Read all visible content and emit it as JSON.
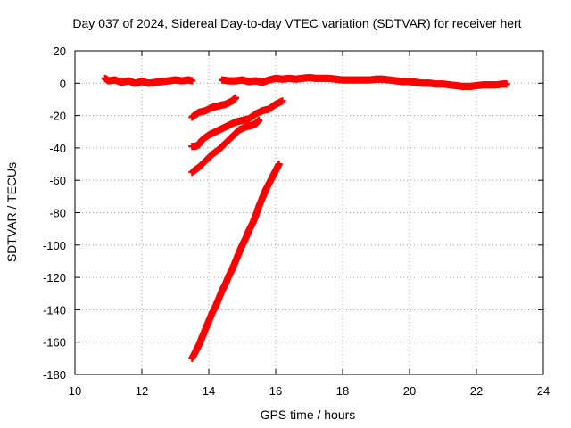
{
  "chart_data": {
    "type": "scatter",
    "title": "Day 037 of 2024, Sidereal Day-to-day VTEC variation (SDTVAR) for receiver hert",
    "xlabel": "GPS time / hours",
    "ylabel": "SDTVAR / TECUs",
    "xlim": [
      10,
      24
    ],
    "ylim": [
      -180,
      20
    ],
    "xticks": [
      10,
      12,
      14,
      16,
      18,
      20,
      22,
      24
    ],
    "yticks": [
      20,
      0,
      -20,
      -40,
      -60,
      -80,
      -100,
      -120,
      -140,
      -160,
      -180
    ],
    "grid": true,
    "marker": "plus",
    "color": "#ff0000",
    "series": [
      {
        "x": [
          10.9,
          11.0,
          11.2,
          11.4,
          11.6,
          11.8,
          12.0,
          12.2,
          12.4,
          12.6,
          12.8,
          13.0,
          13.2,
          13.4,
          13.5
        ],
        "y": [
          3,
          1.5,
          2,
          0.5,
          1.5,
          0,
          1,
          0,
          0.5,
          1,
          1.5,
          2,
          1.5,
          2,
          1.5
        ]
      },
      {
        "x": [
          14.4,
          14.6,
          14.8,
          15.0,
          15.2,
          15.4,
          15.6,
          15.8,
          16.0,
          16.2,
          16.4,
          16.6,
          16.8,
          17.0,
          17.2,
          17.4,
          17.6,
          17.8,
          18.0,
          18.2,
          18.4,
          18.6,
          18.8,
          19.0,
          19.2,
          19.4,
          19.6,
          19.8,
          20.0,
          20.2,
          20.4,
          20.6,
          20.8,
          21.0,
          21.2,
          21.4,
          21.6,
          21.8,
          22.0,
          22.2,
          22.4,
          22.6,
          22.8,
          22.9
        ],
        "y": [
          2,
          1.5,
          1.5,
          2,
          1,
          1.5,
          0.5,
          2,
          3,
          2.5,
          3,
          2.5,
          3,
          3.5,
          3,
          3,
          3,
          2.5,
          2,
          2,
          2,
          2,
          2,
          2.5,
          2.5,
          2,
          1.5,
          1,
          1,
          0.5,
          0,
          0,
          -0.5,
          -0.5,
          -1,
          -1.5,
          -2,
          -2,
          -1.5,
          -1,
          -1,
          -1,
          -0.5,
          -0.5
        ]
      },
      {
        "x": [
          13.5,
          13.7,
          13.9,
          14.1,
          14.3,
          14.5,
          14.7,
          14.8
        ],
        "y": [
          -21,
          -18,
          -17,
          -15,
          -14,
          -13,
          -11,
          -9
        ]
      },
      {
        "x": [
          13.5,
          13.6,
          13.7,
          13.8,
          14.0,
          14.2,
          14.4,
          14.6,
          14.8,
          15.0,
          15.2,
          15.4,
          15.6,
          15.8,
          16.0,
          16.2
        ],
        "y": [
          -39,
          -39,
          -38,
          -35,
          -32,
          -30,
          -28,
          -26,
          -24,
          -23,
          -22,
          -19,
          -17,
          -16,
          -13,
          -11
        ]
      },
      {
        "x": [
          13.5,
          13.7,
          13.9,
          14.1,
          14.3,
          14.5,
          14.7,
          14.9,
          15.1,
          15.3,
          15.4,
          15.5
        ],
        "y": [
          -55,
          -52,
          -48,
          -44,
          -41,
          -37,
          -33,
          -29,
          -27,
          -26,
          -25,
          -23
        ]
      },
      {
        "x": [
          13.5,
          13.6,
          13.7,
          13.8,
          13.9,
          14.0,
          14.1,
          14.2,
          14.3,
          14.4,
          14.5,
          14.6,
          14.7,
          14.8,
          14.9,
          15.0,
          15.1,
          15.2,
          15.3,
          15.4,
          15.5,
          15.6,
          15.7,
          15.8,
          15.9,
          16.0,
          16.1
        ],
        "y": [
          -170,
          -166,
          -162,
          -157,
          -152,
          -147,
          -142,
          -138,
          -133,
          -128,
          -124,
          -119,
          -115,
          -110,
          -105,
          -100,
          -96,
          -91,
          -87,
          -82,
          -76,
          -71,
          -66,
          -62,
          -58,
          -54,
          -50
        ]
      }
    ]
  }
}
